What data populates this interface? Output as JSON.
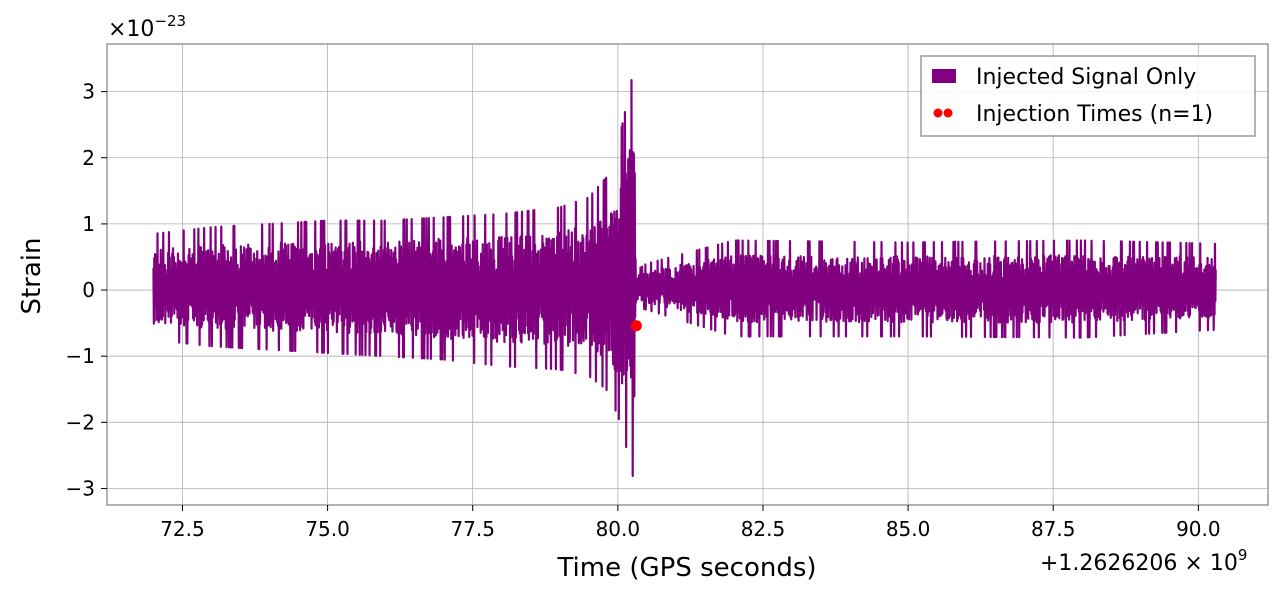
{
  "chart_data": {
    "type": "line",
    "xlabel": "Time (GPS seconds)",
    "ylabel": "Strain",
    "x_offset_label": "+1.2626206 × 10",
    "x_offset_exp": "9",
    "y_multiplier_label": "×10",
    "y_multiplier_exp": "−23",
    "xlim": [
      71.2,
      91.2
    ],
    "ylim": [
      -3.25,
      3.72
    ],
    "x_ticks": [
      72.5,
      75.0,
      77.5,
      80.0,
      82.5,
      85.0,
      87.5,
      90.0
    ],
    "x_tick_labels": [
      "72.5",
      "75.0",
      "77.5",
      "80.0",
      "82.5",
      "85.0",
      "87.5",
      "90.0"
    ],
    "y_ticks": [
      -3,
      -2,
      -1,
      0,
      1,
      2,
      3
    ],
    "y_tick_labels": [
      "−3",
      "−2",
      "−1",
      "0",
      "1",
      "2",
      "3"
    ],
    "grid": true,
    "legend_position": "top-right",
    "colors": {
      "signal": "#800080",
      "injection": "#ff0000",
      "grid": "#b0b0b0",
      "frame": "#999999"
    },
    "series": [
      {
        "name": "Injected Signal Only",
        "kind": "line",
        "x_range": [
          72.0,
          90.3
        ],
        "envelope": {
          "x": [
            72.0,
            73.0,
            74.0,
            75.0,
            76.0,
            77.0,
            78.0,
            79.0,
            79.5,
            79.8,
            80.0,
            80.1,
            80.2,
            80.28,
            80.32,
            80.5,
            82.0,
            85.0,
            88.0,
            90.3
          ],
          "upper": [
            0.85,
            0.95,
            1.0,
            1.05,
            1.05,
            1.1,
            1.15,
            1.25,
            1.4,
            1.7,
            2.2,
            2.6,
            3.0,
            3.4,
            0.3,
            0.4,
            0.75,
            0.72,
            0.75,
            0.7
          ],
          "lower": [
            -0.75,
            -0.85,
            -0.9,
            -0.95,
            -1.0,
            -1.05,
            -1.15,
            -1.2,
            -1.3,
            -1.5,
            -1.9,
            -2.2,
            -2.6,
            -2.9,
            -0.25,
            -0.3,
            -0.7,
            -0.7,
            -0.72,
            -0.6
          ]
        }
      },
      {
        "name": "Injection Times (n=1)",
        "kind": "scatter",
        "x": [
          80.32
        ],
        "y": [
          -0.54
        ]
      }
    ]
  }
}
